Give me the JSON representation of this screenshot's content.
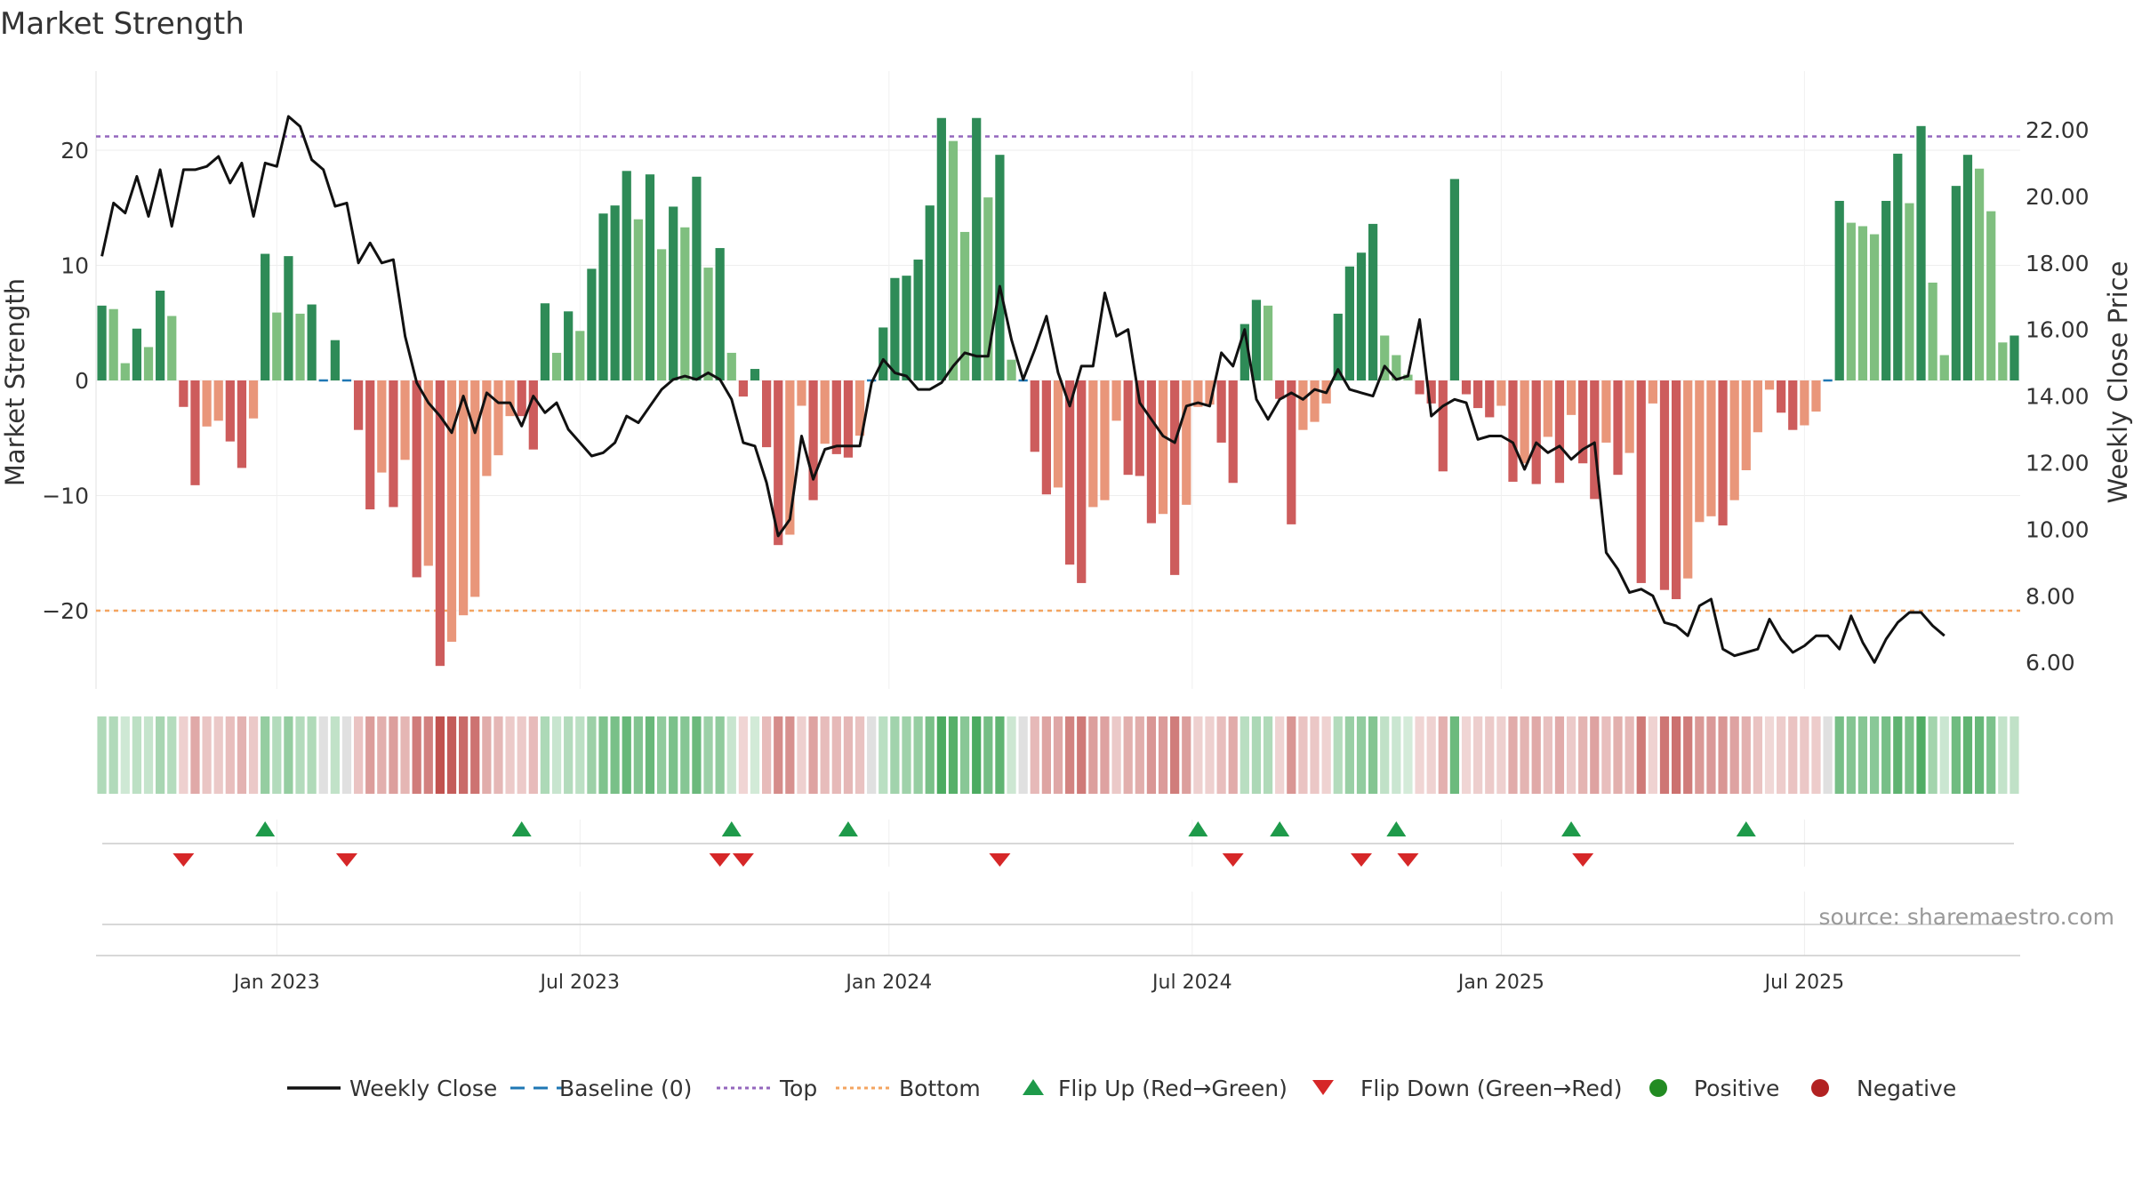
{
  "chart_data": {
    "type": "bar",
    "title": "Market Strength",
    "ylabel_left": "Market Strength",
    "ylabel_right": "Weekly Close Price",
    "source": "source: sharemaestro.com",
    "ylim_left": [
      -27,
      27
    ],
    "ylim_right": [
      5,
      23.5
    ],
    "y_ticks_left": [
      {
        "value": 20,
        "label": "20"
      },
      {
        "value": 10,
        "label": "10"
      },
      {
        "value": 0,
        "label": "0"
      },
      {
        "value": -10,
        "label": "−10"
      },
      {
        "value": -20,
        "label": "−20"
      }
    ],
    "y_ticks_right": [
      {
        "value": 22,
        "label": "22.00"
      },
      {
        "value": 20,
        "label": "20.00"
      },
      {
        "value": 18,
        "label": "18.00"
      },
      {
        "value": 16,
        "label": "16.00"
      },
      {
        "value": 14,
        "label": "14.00"
      },
      {
        "value": 12,
        "label": "12.00"
      },
      {
        "value": 10,
        "label": "10.00"
      },
      {
        "value": 8,
        "label": "8.00"
      },
      {
        "value": 6,
        "label": "6.00"
      }
    ],
    "x_ticks": [
      {
        "index": 15,
        "label": "Jan 2023"
      },
      {
        "index": 41,
        "label": "Jul 2023"
      },
      {
        "index": 67.5,
        "label": "Jan 2024"
      },
      {
        "index": 93.5,
        "label": "Jul 2024"
      },
      {
        "index": 120,
        "label": "Jan 2025"
      },
      {
        "index": 146,
        "label": "Jul 2025"
      }
    ],
    "top_line": 21.2,
    "bottom_line": -20,
    "strength": [
      6.5,
      6.2,
      1.5,
      4.5,
      2.9,
      7.8,
      5.6,
      -2.3,
      -9.1,
      -4.0,
      -3.5,
      -5.3,
      -7.6,
      -3.3,
      11.0,
      5.9,
      10.8,
      5.8,
      6.6,
      0,
      3.5,
      0,
      -4.3,
      -11.2,
      -8.0,
      -11.0,
      -6.9,
      -17.1,
      -16.1,
      -24.8,
      -22.7,
      -20.4,
      -18.8,
      -8.3,
      -6.5,
      -3.1,
      -3.1,
      -6.0,
      6.7,
      2.4,
      6.0,
      4.3,
      9.7,
      14.5,
      15.2,
      18.2,
      14.0,
      17.9,
      11.4,
      15.1,
      13.3,
      17.7,
      9.8,
      11.5,
      2.4,
      -1.4,
      1.0,
      -5.8,
      -14.3,
      -13.4,
      -2.2,
      -10.4,
      -5.5,
      -6.4,
      -6.7,
      -4.8,
      0,
      4.6,
      8.9,
      9.1,
      10.5,
      15.2,
      22.8,
      20.8,
      12.9,
      22.8,
      15.9,
      19.6,
      1.8,
      0,
      -6.2,
      -9.9,
      -9.3,
      -16.0,
      -17.6,
      -11.0,
      -10.4,
      -3.5,
      -8.2,
      -8.3,
      -12.4,
      -11.6,
      -16.9,
      -10.8,
      -2.3,
      -2.1,
      -5.4,
      -8.9,
      4.9,
      7.0,
      6.5,
      -1.6,
      -12.5,
      -4.3,
      -3.6,
      -2.0,
      5.8,
      9.9,
      11.1,
      13.6,
      3.9,
      2.2,
      0.5,
      -1.2,
      -2.0,
      -7.9,
      17.5,
      -1.2,
      -2.4,
      -3.2,
      -2.2,
      -8.8,
      -7.2,
      -9.0,
      -4.9,
      -8.9,
      -3.0,
      -7.2,
      -10.3,
      -5.4,
      -8.2,
      -6.3,
      -17.6,
      -2.0,
      -18.2,
      -19.0,
      -17.2,
      -12.3,
      -11.8,
      -12.6,
      -10.4,
      -7.8,
      -4.5,
      -0.8,
      -2.8,
      -4.3,
      -3.9,
      -2.7,
      0,
      15.6,
      13.7,
      13.4,
      12.7,
      15.6,
      19.7,
      15.4,
      22.1,
      8.5,
      2.2,
      16.9,
      19.6,
      18.4,
      14.7,
      3.3,
      3.9
    ],
    "weekly_close": [
      18.2,
      19.8,
      19.5,
      20.6,
      19.4,
      20.8,
      19.1,
      20.8,
      20.8,
      20.9,
      21.2,
      20.4,
      21.0,
      19.4,
      21.0,
      20.9,
      22.4,
      22.1,
      21.1,
      20.8,
      19.7,
      19.8,
      18.0,
      18.6,
      18.0,
      18.1,
      15.8,
      14.4,
      13.8,
      13.4,
      12.9,
      14.0,
      12.9,
      14.1,
      13.8,
      13.8,
      13.1,
      14.0,
      13.5,
      13.8,
      13.0,
      12.6,
      12.2,
      12.3,
      12.6,
      13.4,
      13.2,
      13.7,
      14.2,
      14.5,
      14.6,
      14.5,
      14.7,
      14.5,
      13.9,
      12.6,
      12.5,
      11.4,
      9.8,
      10.3,
      12.8,
      11.5,
      12.4,
      12.5,
      12.5,
      12.5,
      14.4,
      15.1,
      14.7,
      14.6,
      14.2,
      14.2,
      14.4,
      14.9,
      15.3,
      15.2,
      15.2,
      17.3,
      15.7,
      14.5,
      15.4,
      16.4,
      14.7,
      13.7,
      14.9,
      14.9,
      17.1,
      15.8,
      16.0,
      13.8,
      13.3,
      12.8,
      12.6,
      13.7,
      13.8,
      13.7,
      15.3,
      14.9,
      16.0,
      13.9,
      13.3,
      13.9,
      14.1,
      13.9,
      14.2,
      14.1,
      14.8,
      14.2,
      14.1,
      14.0,
      14.9,
      14.5,
      14.6,
      16.3,
      13.4,
      13.7,
      13.9,
      13.8,
      12.7,
      12.8,
      12.8,
      12.6,
      11.8,
      12.6,
      12.3,
      12.5,
      12.1,
      12.4,
      12.6,
      9.3,
      8.8,
      8.1,
      8.2,
      8.0,
      7.2,
      7.1,
      6.8,
      7.7,
      7.9,
      6.4,
      6.2,
      6.3,
      6.4,
      7.3,
      6.7,
      6.3,
      6.5,
      6.8,
      6.8,
      6.4,
      7.4,
      6.6,
      6.0,
      6.7,
      7.2,
      7.5,
      7.5,
      7.1,
      6.8
    ],
    "flip_up_index": [
      14,
      36,
      54,
      64,
      94,
      101,
      111,
      126,
      141
    ],
    "flip_down_index": [
      7,
      21,
      53,
      55,
      77,
      97,
      108,
      112,
      127
    ],
    "legend": [
      {
        "key": "weekly_close",
        "label": "Weekly Close",
        "color": "#111111"
      },
      {
        "key": "baseline",
        "label": "Baseline (0)",
        "color": "#1f77b4"
      },
      {
        "key": "top",
        "label": "Top",
        "color": "#9467bd"
      },
      {
        "key": "bottom",
        "label": "Bottom",
        "color": "#f4a460"
      },
      {
        "key": "flip_up",
        "label": "Flip Up (Red→Green)",
        "color": "#1e9a4a"
      },
      {
        "key": "flip_down",
        "label": "Flip Down (Green→Red)",
        "color": "#d62728"
      },
      {
        "key": "positive",
        "label": "Positive",
        "color": "#228b22"
      },
      {
        "key": "negative",
        "label": "Negative",
        "color": "#b22222"
      }
    ],
    "colors": {
      "pos_dark": "#2e8b57",
      "pos_light": "#7fbf7f",
      "neg_dark": "#cd5c5c",
      "neg_light": "#e9967a",
      "baseline": "#1f77b4",
      "top": "#9467bd",
      "bottom": "#f4a460"
    }
  }
}
